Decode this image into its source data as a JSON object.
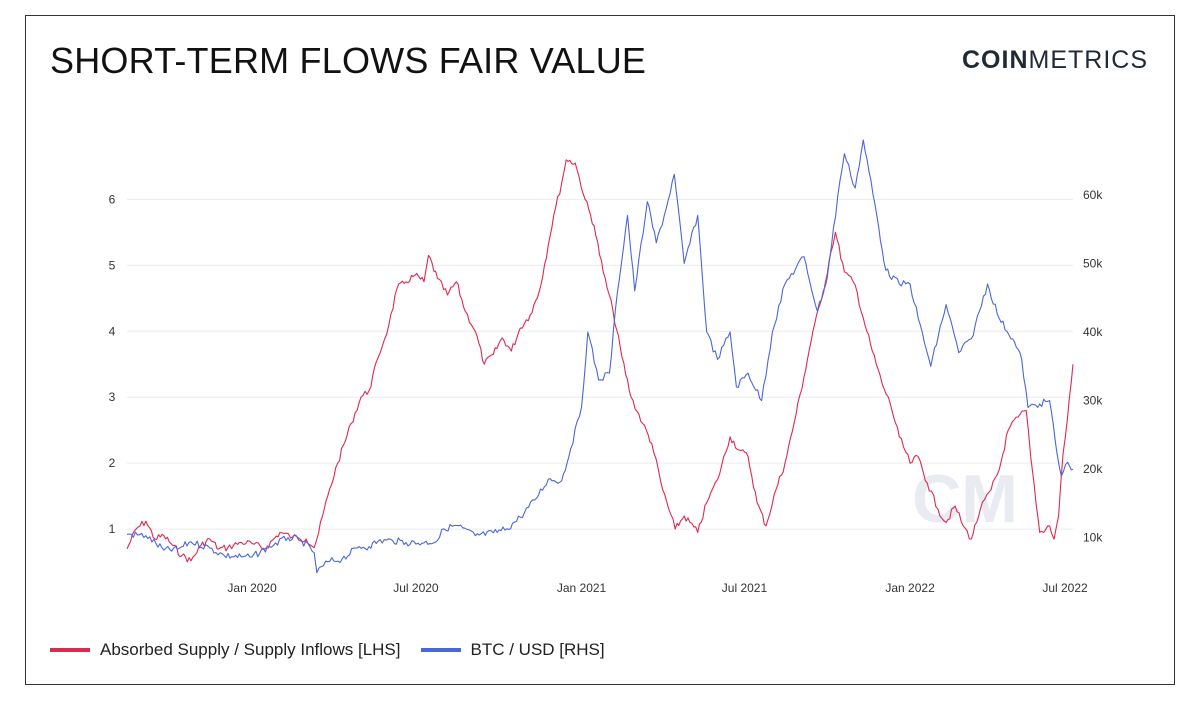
{
  "header": {
    "title": "SHORT-TERM FLOWS FAIR VALUE",
    "brand_bold": "COIN",
    "brand_light": "METRICS"
  },
  "colors": {
    "lhs": "#e0284f",
    "rhs": "#4a67d8",
    "grid": "#ececec"
  },
  "chart_data": {
    "type": "line",
    "title": "SHORT-TERM FLOWS FAIR VALUE",
    "x_ticks": [
      {
        "label": "Jan 2020",
        "date": "2020-01-01"
      },
      {
        "label": "Jul 2020",
        "date": "2020-07-01"
      },
      {
        "label": "Jan 2021",
        "date": "2021-01-01"
      },
      {
        "label": "Jul 2021",
        "date": "2021-07-01"
      },
      {
        "label": "Jan 2022",
        "date": "2022-01-01"
      },
      {
        "label": "Jul 2022",
        "date": "2022-07-01"
      }
    ],
    "x_range": [
      "2019-08-15",
      "2022-07-01"
    ],
    "y_left": {
      "ticks": [
        "1",
        "2",
        "3",
        "4",
        "5",
        "6"
      ],
      "values": [
        1,
        2,
        3,
        4,
        5,
        6
      ],
      "range": [
        0.35,
        6.9
      ]
    },
    "y_right": {
      "ticks": [
        "10k",
        "20k",
        "30k",
        "40k",
        "50k",
        "60k"
      ],
      "values": [
        10000,
        20000,
        30000,
        40000,
        50000,
        60000
      ],
      "range": [
        5000,
        68000
      ]
    },
    "grid": true,
    "legend_position": "bottom-left",
    "series": [
      {
        "name": "Absorbed Supply / Supply Inflows [LHS]",
        "axis": "left",
        "color": "#e0284f",
        "points": [
          [
            "2019-08-15",
            0.7
          ],
          [
            "2019-08-25",
            1.0
          ],
          [
            "2019-09-05",
            1.12
          ],
          [
            "2019-09-15",
            0.85
          ],
          [
            "2019-09-25",
            0.9
          ],
          [
            "2019-10-05",
            0.75
          ],
          [
            "2019-10-15",
            0.6
          ],
          [
            "2019-10-25",
            0.52
          ],
          [
            "2019-11-05",
            0.75
          ],
          [
            "2019-11-15",
            0.85
          ],
          [
            "2019-11-25",
            0.7
          ],
          [
            "2019-12-05",
            0.72
          ],
          [
            "2019-12-20",
            0.8
          ],
          [
            "2020-01-01",
            0.78
          ],
          [
            "2020-01-15",
            0.7
          ],
          [
            "2020-02-01",
            0.95
          ],
          [
            "2020-02-15",
            0.88
          ],
          [
            "2020-03-01",
            0.85
          ],
          [
            "2020-03-10",
            0.72
          ],
          [
            "2020-03-15",
            0.95
          ],
          [
            "2020-03-25",
            1.5
          ],
          [
            "2020-04-05",
            2.0
          ],
          [
            "2020-04-20",
            2.6
          ],
          [
            "2020-05-01",
            3.0
          ],
          [
            "2020-05-10",
            3.1
          ],
          [
            "2020-05-20",
            3.6
          ],
          [
            "2020-06-01",
            4.1
          ],
          [
            "2020-06-10",
            4.65
          ],
          [
            "2020-06-20",
            4.75
          ],
          [
            "2020-06-30",
            4.85
          ],
          [
            "2020-07-10",
            4.75
          ],
          [
            "2020-07-15",
            5.15
          ],
          [
            "2020-07-25",
            4.8
          ],
          [
            "2020-08-05",
            4.55
          ],
          [
            "2020-08-15",
            4.75
          ],
          [
            "2020-08-25",
            4.3
          ],
          [
            "2020-09-05",
            4.0
          ],
          [
            "2020-09-15",
            3.5
          ],
          [
            "2020-09-25",
            3.65
          ],
          [
            "2020-10-05",
            3.9
          ],
          [
            "2020-10-15",
            3.7
          ],
          [
            "2020-10-25",
            4.05
          ],
          [
            "2020-11-05",
            4.25
          ],
          [
            "2020-11-15",
            4.6
          ],
          [
            "2020-11-25",
            5.3
          ],
          [
            "2020-12-01",
            5.75
          ],
          [
            "2020-12-10",
            6.25
          ],
          [
            "2020-12-15",
            6.6
          ],
          [
            "2020-12-25",
            6.55
          ],
          [
            "2021-01-05",
            6.0
          ],
          [
            "2021-01-15",
            5.6
          ],
          [
            "2021-01-25",
            4.9
          ],
          [
            "2021-02-05",
            4.3
          ],
          [
            "2021-02-15",
            3.6
          ],
          [
            "2021-02-25",
            3.0
          ],
          [
            "2021-03-10",
            2.6
          ],
          [
            "2021-03-20",
            2.3
          ],
          [
            "2021-04-01",
            1.6
          ],
          [
            "2021-04-15",
            1.0
          ],
          [
            "2021-04-25",
            1.2
          ],
          [
            "2021-05-10",
            0.95
          ],
          [
            "2021-05-20",
            1.4
          ],
          [
            "2021-06-01",
            1.75
          ],
          [
            "2021-06-15",
            2.4
          ],
          [
            "2021-06-25",
            2.2
          ],
          [
            "2021-07-05",
            2.1
          ],
          [
            "2021-07-15",
            1.4
          ],
          [
            "2021-07-25",
            1.05
          ],
          [
            "2021-08-05",
            1.6
          ],
          [
            "2021-08-15",
            2.0
          ],
          [
            "2021-08-25",
            2.6
          ],
          [
            "2021-09-05",
            3.3
          ],
          [
            "2021-09-15",
            4.0
          ],
          [
            "2021-09-25",
            4.5
          ],
          [
            "2021-10-05",
            5.2
          ],
          [
            "2021-10-10",
            5.5
          ],
          [
            "2021-10-20",
            4.9
          ],
          [
            "2021-11-01",
            4.7
          ],
          [
            "2021-11-10",
            4.2
          ],
          [
            "2021-11-20",
            3.7
          ],
          [
            "2021-12-01",
            3.2
          ],
          [
            "2021-12-10",
            2.9
          ],
          [
            "2021-12-20",
            2.4
          ],
          [
            "2022-01-01",
            2.0
          ],
          [
            "2022-01-10",
            2.1
          ],
          [
            "2022-01-20",
            1.7
          ],
          [
            "2022-02-01",
            1.3
          ],
          [
            "2022-02-10",
            1.1
          ],
          [
            "2022-02-20",
            1.35
          ],
          [
            "2022-03-01",
            1.05
          ],
          [
            "2022-03-10",
            0.85
          ],
          [
            "2022-03-20",
            1.3
          ],
          [
            "2022-04-01",
            1.6
          ],
          [
            "2022-04-10",
            1.9
          ],
          [
            "2022-04-20",
            2.5
          ],
          [
            "2022-05-01",
            2.7
          ],
          [
            "2022-05-10",
            2.8
          ],
          [
            "2022-05-15",
            2.1
          ],
          [
            "2022-05-25",
            0.95
          ],
          [
            "2022-06-05",
            1.05
          ],
          [
            "2022-06-10",
            0.85
          ],
          [
            "2022-06-15",
            1.2
          ],
          [
            "2022-06-20",
            2.15
          ],
          [
            "2022-06-25",
            2.7
          ],
          [
            "2022-07-01",
            3.5
          ]
        ]
      },
      {
        "name": "BTC / USD [RHS]",
        "axis": "right",
        "color": "#4a67d8",
        "points": [
          [
            "2019-08-15",
            10500
          ],
          [
            "2019-09-05",
            10300
          ],
          [
            "2019-09-25",
            8200
          ],
          [
            "2019-10-10",
            8300
          ],
          [
            "2019-10-25",
            9400
          ],
          [
            "2019-11-15",
            8500
          ],
          [
            "2019-12-01",
            7400
          ],
          [
            "2019-12-20",
            7200
          ],
          [
            "2020-01-01",
            7200
          ],
          [
            "2020-01-20",
            8700
          ],
          [
            "2020-02-10",
            10000
          ],
          [
            "2020-02-25",
            9600
          ],
          [
            "2020-03-10",
            7800
          ],
          [
            "2020-03-13",
            4900
          ],
          [
            "2020-03-25",
            6500
          ],
          [
            "2020-04-10",
            6900
          ],
          [
            "2020-04-29",
            8700
          ],
          [
            "2020-05-10",
            8700
          ],
          [
            "2020-05-20",
            9500
          ],
          [
            "2020-06-05",
            9600
          ],
          [
            "2020-06-20",
            9300
          ],
          [
            "2020-07-10",
            9250
          ],
          [
            "2020-07-25",
            9600
          ],
          [
            "2020-08-01",
            11300
          ],
          [
            "2020-08-15",
            11800
          ],
          [
            "2020-09-05",
            10300
          ],
          [
            "2020-09-25",
            10700
          ],
          [
            "2020-10-10",
            11300
          ],
          [
            "2020-10-25",
            13000
          ],
          [
            "2020-11-10",
            15500
          ],
          [
            "2020-11-25",
            18500
          ],
          [
            "2020-12-10",
            18300
          ],
          [
            "2020-12-20",
            23000
          ],
          [
            "2021-01-01",
            29000
          ],
          [
            "2021-01-08",
            40000
          ],
          [
            "2021-01-20",
            33000
          ],
          [
            "2021-02-01",
            34000
          ],
          [
            "2021-02-10",
            46000
          ],
          [
            "2021-02-21",
            57000
          ],
          [
            "2021-03-01",
            46000
          ],
          [
            "2021-03-15",
            59000
          ],
          [
            "2021-03-25",
            53000
          ],
          [
            "2021-04-05",
            58000
          ],
          [
            "2021-04-14",
            63000
          ],
          [
            "2021-04-25",
            50000
          ],
          [
            "2021-05-10",
            57000
          ],
          [
            "2021-05-20",
            40000
          ],
          [
            "2021-06-01",
            36000
          ],
          [
            "2021-06-15",
            40000
          ],
          [
            "2021-06-22",
            32000
          ],
          [
            "2021-07-05",
            34000
          ],
          [
            "2021-07-20",
            30000
          ],
          [
            "2021-08-01",
            40000
          ],
          [
            "2021-08-15",
            47000
          ],
          [
            "2021-09-05",
            51000
          ],
          [
            "2021-09-20",
            43000
          ],
          [
            "2021-10-01",
            48000
          ],
          [
            "2021-10-15",
            62000
          ],
          [
            "2021-10-20",
            66000
          ],
          [
            "2021-11-01",
            61000
          ],
          [
            "2021-11-10",
            68000
          ],
          [
            "2021-11-25",
            57000
          ],
          [
            "2021-12-05",
            49000
          ],
          [
            "2021-12-20",
            47000
          ],
          [
            "2022-01-01",
            47000
          ],
          [
            "2022-01-10",
            42000
          ],
          [
            "2022-01-24",
            35000
          ],
          [
            "2022-02-10",
            44000
          ],
          [
            "2022-02-24",
            37000
          ],
          [
            "2022-03-10",
            39000
          ],
          [
            "2022-03-28",
            47000
          ],
          [
            "2022-04-10",
            42000
          ],
          [
            "2022-04-25",
            39000
          ],
          [
            "2022-05-05",
            36000
          ],
          [
            "2022-05-12",
            29000
          ],
          [
            "2022-05-25",
            29500
          ],
          [
            "2022-06-05",
            30000
          ],
          [
            "2022-06-13",
            22500
          ],
          [
            "2022-06-18",
            19000
          ],
          [
            "2022-06-25",
            21000
          ],
          [
            "2022-07-01",
            20000
          ]
        ]
      }
    ]
  },
  "legend": [
    {
      "label": "Absorbed Supply / Supply Inflows [LHS]",
      "color": "#e0284f"
    },
    {
      "label": "BTC / USD [RHS]",
      "color": "#4a67d8"
    }
  ]
}
